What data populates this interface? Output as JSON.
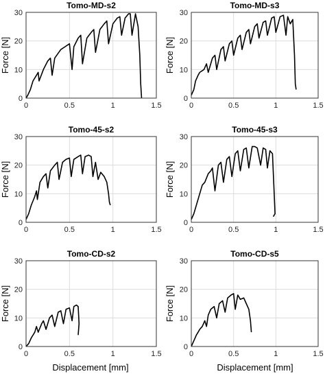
{
  "figure": {
    "xlabel": "Displacement [mm]",
    "ylabel": "Force [N]"
  },
  "chart_data": [
    {
      "type": "line",
      "title": "Tomo-MD-s2",
      "xlabel": "Displacement [mm]",
      "ylabel": "Force [N]",
      "xlim": [
        0,
        1.5
      ],
      "ylim": [
        0,
        30
      ],
      "xticks": [
        0,
        0.5,
        1,
        1.5
      ],
      "yticks": [
        0,
        10,
        20,
        30
      ],
      "grid": true,
      "series": [
        {
          "x": [
            0,
            0.02,
            0.05,
            0.08,
            0.12,
            0.14,
            0.15,
            0.2,
            0.25,
            0.28,
            0.3,
            0.33,
            0.4,
            0.45,
            0.5,
            0.53,
            0.55,
            0.6,
            0.63,
            0.65,
            0.7,
            0.75,
            0.78,
            0.8,
            0.85,
            0.9,
            0.93,
            0.95,
            1.0,
            1.05,
            1.08,
            1.1,
            1.14,
            1.18,
            1.2,
            1.22,
            1.26,
            1.29,
            1.31,
            1.32,
            1.33
          ],
          "y": [
            0,
            1,
            3,
            6,
            8,
            9,
            6,
            10,
            13,
            14,
            8,
            14,
            17,
            18,
            19,
            10,
            18,
            21,
            22,
            12,
            21,
            23,
            24,
            16,
            24,
            26,
            27,
            19,
            26,
            28,
            28.5,
            22,
            28,
            29.5,
            29.5,
            22,
            29.5,
            25,
            15,
            5,
            0
          ]
        }
      ]
    },
    {
      "type": "line",
      "title": "Tomo-MD-s3",
      "xlabel": "Displacement [mm]",
      "ylabel": "Force [N]",
      "xlim": [
        0,
        1.5
      ],
      "ylim": [
        0,
        30
      ],
      "xticks": [
        0,
        0.5,
        1,
        1.5
      ],
      "yticks": [
        0,
        10,
        20,
        30
      ],
      "grid": true,
      "series": [
        {
          "x": [
            0,
            0.03,
            0.05,
            0.08,
            0.1,
            0.15,
            0.18,
            0.2,
            0.25,
            0.28,
            0.3,
            0.35,
            0.38,
            0.4,
            0.45,
            0.48,
            0.5,
            0.55,
            0.58,
            0.6,
            0.65,
            0.68,
            0.7,
            0.75,
            0.78,
            0.8,
            0.85,
            0.88,
            0.9,
            0.95,
            0.98,
            1.0,
            1.05,
            1.09,
            1.12,
            1.14,
            1.17,
            1.2,
            1.22,
            1.23,
            1.24
          ],
          "y": [
            1,
            3,
            6,
            8,
            9,
            10,
            12,
            9,
            14,
            15,
            10,
            17,
            18,
            13,
            19,
            20,
            15,
            21,
            22,
            17,
            23,
            24,
            19,
            25,
            26,
            21,
            26.5,
            27,
            22,
            28,
            28.5,
            23,
            28.5,
            29,
            22,
            28.5,
            26,
            27.5,
            15,
            5,
            3
          ]
        }
      ]
    },
    {
      "type": "line",
      "title": "Tomo-45-s2",
      "xlabel": "Displacement [mm]",
      "ylabel": "Force [N]",
      "xlim": [
        0,
        1.5
      ],
      "ylim": [
        0,
        30
      ],
      "xticks": [
        0,
        0.5,
        1,
        1.5
      ],
      "yticks": [
        0,
        10,
        20,
        30
      ],
      "grid": true,
      "series": [
        {
          "x": [
            0,
            0.03,
            0.06,
            0.1,
            0.12,
            0.13,
            0.16,
            0.2,
            0.23,
            0.25,
            0.28,
            0.33,
            0.36,
            0.38,
            0.42,
            0.46,
            0.5,
            0.52,
            0.55,
            0.6,
            0.63,
            0.65,
            0.68,
            0.72,
            0.75,
            0.77,
            0.8,
            0.83,
            0.86,
            0.9,
            0.93,
            0.95,
            0.96,
            0.97
          ],
          "y": [
            1,
            3,
            6,
            9,
            11,
            8,
            14,
            16,
            17,
            12,
            18,
            20,
            21,
            15,
            21,
            22,
            22.5,
            16,
            22,
            23,
            23.5,
            17,
            23,
            23.5,
            23,
            16,
            21,
            15,
            17.5,
            16,
            14,
            10,
            7,
            6
          ]
        }
      ]
    },
    {
      "type": "line",
      "title": "Tomo-45-s3",
      "xlabel": "Displacement [mm]",
      "ylabel": "Force [N]",
      "xlim": [
        0,
        1.5
      ],
      "ylim": [
        0,
        30
      ],
      "xticks": [
        0,
        0.5,
        1,
        1.5
      ],
      "yticks": [
        0,
        10,
        20,
        30
      ],
      "grid": true,
      "series": [
        {
          "x": [
            0,
            0.03,
            0.06,
            0.1,
            0.13,
            0.16,
            0.2,
            0.23,
            0.25,
            0.28,
            0.32,
            0.35,
            0.38,
            0.42,
            0.45,
            0.48,
            0.52,
            0.55,
            0.58,
            0.62,
            0.65,
            0.68,
            0.72,
            0.75,
            0.78,
            0.82,
            0.85,
            0.88,
            0.9,
            0.93,
            0.96,
            0.98,
            0.99,
            0.97
          ],
          "y": [
            1,
            3,
            6,
            10,
            13,
            14,
            17,
            18,
            19,
            11,
            20,
            21,
            14,
            22,
            23,
            16,
            24,
            25,
            18,
            25.5,
            26,
            19,
            26.5,
            26.5,
            26,
            20,
            26,
            25.5,
            19,
            25,
            24,
            10,
            3,
            2
          ]
        }
      ]
    },
    {
      "type": "line",
      "title": "Tomo-CD-s2",
      "xlabel": "Displacement [mm]",
      "ylabel": "Force [N]",
      "xlim": [
        0,
        1.5
      ],
      "ylim": [
        0,
        30
      ],
      "xticks": [
        0,
        0.5,
        1,
        1.5
      ],
      "yticks": [
        0,
        10,
        20,
        30
      ],
      "grid": true,
      "series": [
        {
          "x": [
            0,
            0.03,
            0.06,
            0.1,
            0.12,
            0.14,
            0.18,
            0.2,
            0.23,
            0.27,
            0.3,
            0.33,
            0.37,
            0.4,
            0.43,
            0.46,
            0.5,
            0.53,
            0.55,
            0.58,
            0.6,
            0.61,
            0.6
          ],
          "y": [
            0,
            1,
            3,
            5,
            7,
            5,
            8,
            9,
            6,
            10,
            11,
            7,
            12,
            12.5,
            8,
            13,
            13.5,
            9,
            14,
            14.5,
            14,
            8,
            4
          ]
        }
      ]
    },
    {
      "type": "line",
      "title": "Tomo-CD-s5",
      "xlabel": "Displacement [mm]",
      "ylabel": "Force [N]",
      "xlim": [
        0,
        1.5
      ],
      "ylim": [
        0,
        30
      ],
      "xticks": [
        0,
        0.5,
        1,
        1.5
      ],
      "yticks": [
        0,
        10,
        20,
        30
      ],
      "grid": true,
      "series": [
        {
          "x": [
            0,
            0.03,
            0.06,
            0.08,
            0.1,
            0.13,
            0.16,
            0.18,
            0.2,
            0.23,
            0.27,
            0.3,
            0.33,
            0.37,
            0.4,
            0.43,
            0.47,
            0.5,
            0.52,
            0.55,
            0.58,
            0.62,
            0.65,
            0.68,
            0.7,
            0.71
          ],
          "y": [
            0,
            2,
            4,
            5,
            6,
            7,
            9,
            7,
            11,
            13,
            14,
            10,
            15,
            16,
            12,
            17,
            18,
            18.5,
            13,
            18,
            16.5,
            17,
            15,
            13,
            9,
            5
          ]
        }
      ]
    }
  ]
}
